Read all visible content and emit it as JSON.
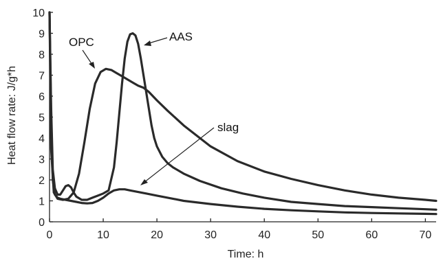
{
  "chart_data": {
    "type": "line",
    "xlabel": "Time: h",
    "ylabel": "Heat flow rate: J/g*h",
    "xlim": [
      0,
      72
    ],
    "ylim": [
      0,
      10
    ],
    "xticks": [
      0,
      10,
      20,
      30,
      40,
      50,
      60,
      70
    ],
    "yticks": [
      0,
      1,
      2,
      3,
      4,
      5,
      6,
      7,
      8,
      9,
      10
    ],
    "grid": false,
    "series": [
      {
        "name": "OPC",
        "x": [
          0,
          0.3,
          0.8,
          1.5,
          2.5,
          3.5,
          4.5,
          5.5,
          6.5,
          7.5,
          8.5,
          9.5,
          10.5,
          11.5,
          12.5,
          13.5,
          14.5,
          15.5,
          16.5,
          17.5,
          18.5,
          20,
          22,
          25,
          30,
          35,
          40,
          45,
          50,
          55,
          60,
          65,
          70,
          72
        ],
        "y": [
          10,
          3.5,
          1.4,
          1.1,
          1.05,
          1.1,
          1.4,
          2.3,
          3.8,
          5.4,
          6.6,
          7.15,
          7.3,
          7.25,
          7.1,
          6.95,
          6.8,
          6.65,
          6.5,
          6.4,
          6.2,
          5.8,
          5.3,
          4.6,
          3.6,
          2.9,
          2.4,
          2.05,
          1.75,
          1.5,
          1.3,
          1.15,
          1.05,
          1.0
        ]
      },
      {
        "name": "AAS",
        "x": [
          0,
          0.3,
          0.6,
          1,
          1.5,
          2,
          2.5,
          3,
          3.5,
          4,
          4.5,
          5,
          6,
          7,
          8,
          9,
          10,
          11,
          12,
          12.5,
          13,
          13.5,
          14,
          14.5,
          15,
          15.5,
          16,
          16.5,
          17,
          17.5,
          18,
          18.5,
          19,
          19.5,
          20,
          21,
          22,
          23,
          25,
          28,
          32,
          36,
          40,
          45,
          50,
          55,
          60,
          65,
          70,
          72
        ],
        "y": [
          10,
          5.5,
          2.5,
          1.6,
          1.3,
          1.3,
          1.5,
          1.7,
          1.75,
          1.65,
          1.4,
          1.2,
          1.05,
          1.05,
          1.15,
          1.25,
          1.35,
          1.5,
          2.6,
          3.8,
          5.2,
          6.6,
          7.8,
          8.6,
          8.95,
          9.0,
          8.9,
          8.5,
          7.8,
          7.0,
          6.2,
          5.4,
          4.6,
          4.0,
          3.6,
          3.1,
          2.8,
          2.6,
          2.3,
          1.95,
          1.6,
          1.35,
          1.15,
          0.95,
          0.85,
          0.75,
          0.7,
          0.65,
          0.6,
          0.58
        ]
      },
      {
        "name": "slag",
        "x": [
          0,
          0.3,
          0.6,
          1,
          1.5,
          2,
          3,
          4,
          5,
          6,
          7,
          8,
          9,
          10,
          11,
          12,
          13,
          14,
          15,
          16,
          17,
          18,
          20,
          22,
          25,
          30,
          35,
          40,
          45,
          50,
          55,
          60,
          65,
          70,
          72
        ],
        "y": [
          10,
          5.0,
          2.0,
          1.3,
          1.15,
          1.1,
          1.05,
          1.0,
          0.95,
          0.9,
          0.88,
          0.9,
          1.0,
          1.15,
          1.35,
          1.5,
          1.55,
          1.55,
          1.5,
          1.45,
          1.4,
          1.35,
          1.25,
          1.15,
          1.0,
          0.85,
          0.72,
          0.62,
          0.55,
          0.5,
          0.45,
          0.42,
          0.4,
          0.38,
          0.37
        ]
      }
    ],
    "annotations": [
      {
        "text": "OPC"
      },
      {
        "text": "AAS"
      },
      {
        "text": "slag"
      }
    ]
  }
}
